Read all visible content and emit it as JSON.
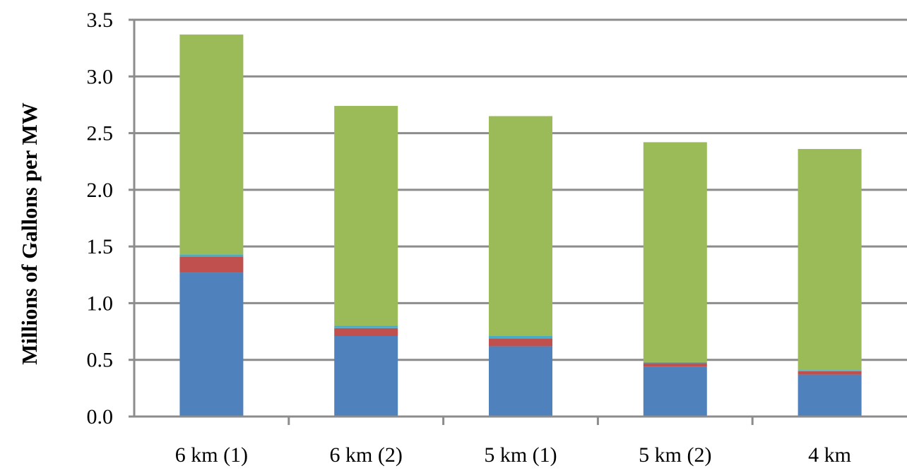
{
  "chart_data": {
    "type": "bar",
    "stacked": true,
    "title": "",
    "xlabel": "",
    "ylabel": "Millions of Gallons per MW",
    "ylim": [
      0,
      3.5
    ],
    "yticks": [
      "0.0",
      "0.5",
      "1.0",
      "1.5",
      "2.0",
      "2.5",
      "3.0",
      "3.5"
    ],
    "grid": true,
    "legend": "none",
    "categories": [
      "6 km (1)",
      "6 km (2)",
      "5 km (1)",
      "5 km (2)",
      "4 km"
    ],
    "series": [
      {
        "color": "#4f81bd",
        "values": [
          1.27,
          0.71,
          0.62,
          0.44,
          0.37
        ]
      },
      {
        "color": "#c0504d",
        "values": [
          0.14,
          0.07,
          0.07,
          0.03,
          0.03
        ]
      },
      {
        "color": "#4bacc6",
        "values": [
          0.02,
          0.02,
          0.02,
          0.01,
          0.01
        ]
      },
      {
        "color": "#9bbb59",
        "values": [
          1.94,
          1.94,
          1.94,
          1.94,
          1.95
        ]
      }
    ]
  }
}
